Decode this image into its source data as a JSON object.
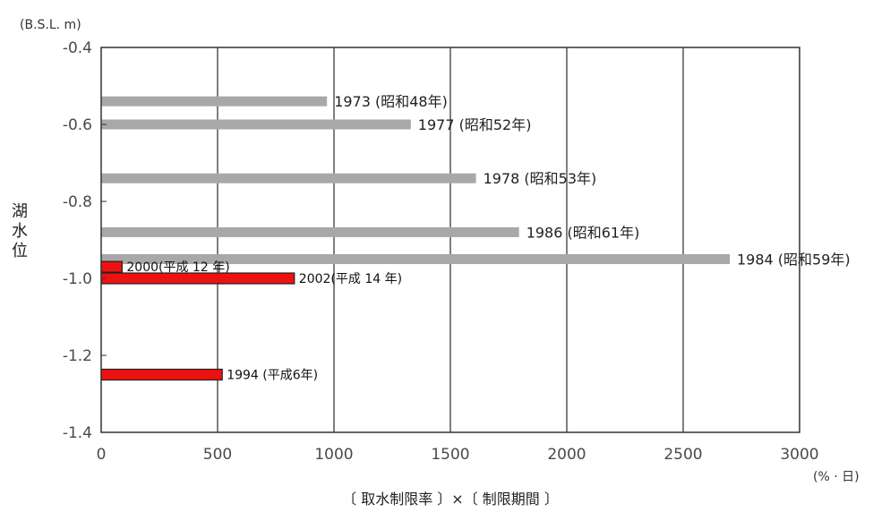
{
  "chart_data": {
    "type": "bar",
    "orientation": "horizontal",
    "y_unit": "(B.S.L. m)",
    "ylabel": "湖水位",
    "xlabel": "〔 取水制限率 〕×〔 制限期間 〕",
    "x_unit": "(% · 日)",
    "xlim": [
      0,
      3000
    ],
    "ylim": [
      -1.4,
      -0.4
    ],
    "x_ticks": [
      "0",
      "500",
      "1000",
      "1500",
      "2000",
      "2500",
      "3000"
    ],
    "y_ticks": [
      "-0.4",
      "-0.6",
      "-0.8",
      "-1.0",
      "-1.2",
      "-1.4"
    ],
    "grid": true,
    "colors": {
      "past": "#a8a8a8",
      "recent": "#ee1111",
      "recent_edge": "#222222",
      "grid": "#555555"
    },
    "bars": [
      {
        "label": "1973 (昭和48年)",
        "y": -0.54,
        "value": 970,
        "group": "past"
      },
      {
        "label": "1977 (昭和52年)",
        "y": -0.6,
        "value": 1330,
        "group": "past"
      },
      {
        "label": "1978 (昭和53年)",
        "y": -0.74,
        "value": 1610,
        "group": "past"
      },
      {
        "label": "1986 (昭和61年)",
        "y": -0.88,
        "value": 1795,
        "group": "past"
      },
      {
        "label": "1984 (昭和59年)",
        "y": -0.95,
        "value": 2700,
        "group": "past"
      },
      {
        "label": "2000(平成 12 年)",
        "y": -0.97,
        "value": 90,
        "group": "recent"
      },
      {
        "label": "2002(平成 14 年)",
        "y": -1.0,
        "value": 830,
        "group": "recent"
      },
      {
        "label": "1994 (平成6年)",
        "y": -1.25,
        "value": 520,
        "group": "recent"
      }
    ]
  }
}
